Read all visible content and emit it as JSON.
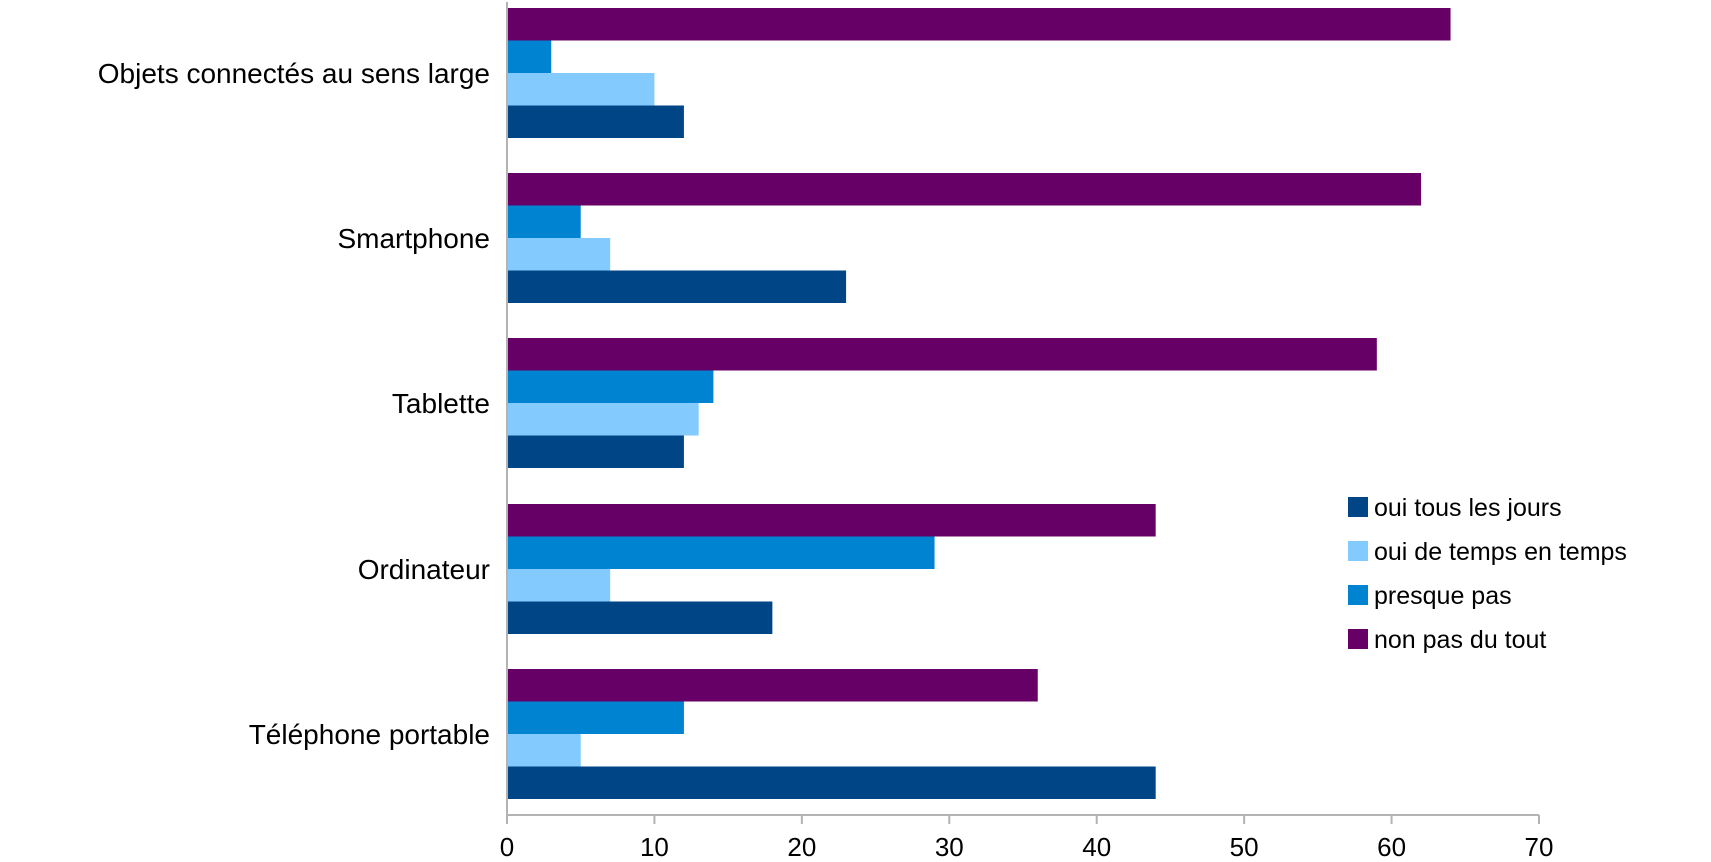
{
  "chart_data": {
    "type": "bar",
    "orientation": "horizontal",
    "title": "",
    "xlabel": "",
    "ylabel": "",
    "categories": [
      "Objets connectés au sens large",
      "Smartphone",
      "Tablette",
      "Ordinateur",
      "Téléphone portable"
    ],
    "series": [
      {
        "name": "oui tous les jours",
        "color": "#004586",
        "values": [
          12,
          23,
          12,
          18,
          44
        ]
      },
      {
        "name": "oui de temps en temps",
        "color": "#83caff",
        "values": [
          10,
          7,
          13,
          7,
          5
        ]
      },
      {
        "name": "presque pas",
        "color": "#0084d1",
        "values": [
          3,
          5,
          14,
          29,
          12
        ]
      },
      {
        "name": "non pas du tout",
        "color": "#660066",
        "values": [
          64,
          62,
          59,
          44,
          36
        ]
      }
    ],
    "xlim": [
      0,
      70
    ],
    "xticks": [
      0,
      10,
      20,
      30,
      40,
      50,
      60,
      70
    ],
    "grid": false,
    "legend": "right"
  }
}
